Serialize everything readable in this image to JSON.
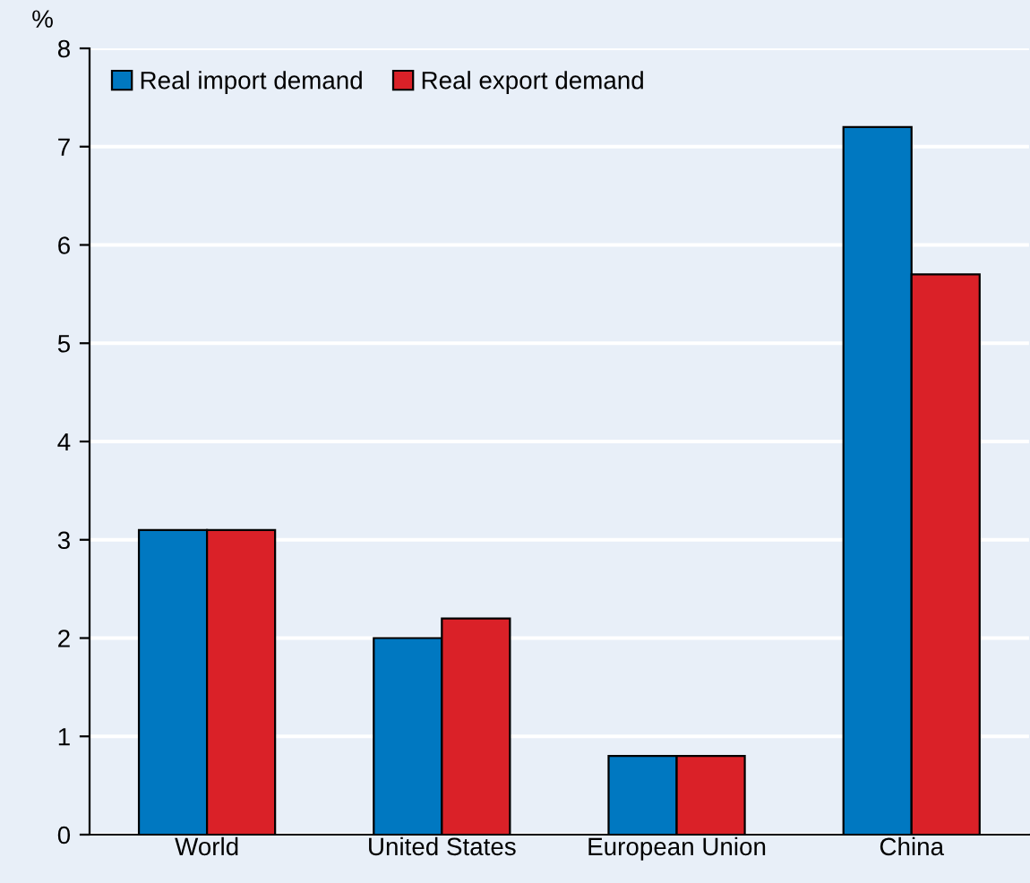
{
  "chart_data": {
    "type": "bar",
    "ylabel": "%",
    "categories": [
      "World",
      "United States",
      "European Union",
      "China"
    ],
    "series": [
      {
        "name": "Real import demand",
        "color": "#0078c1",
        "values": [
          3.1,
          2.0,
          0.8,
          7.2
        ]
      },
      {
        "name": "Real export demand",
        "color": "#da2128",
        "values": [
          3.1,
          2.2,
          0.8,
          5.7
        ]
      }
    ],
    "ylim": [
      0,
      8
    ],
    "yticks": [
      0,
      1,
      2,
      3,
      4,
      5,
      6,
      7,
      8
    ],
    "grid": "y",
    "legend": "top left"
  }
}
